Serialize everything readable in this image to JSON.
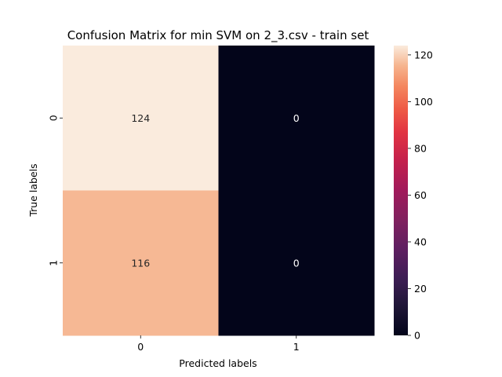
{
  "chart_data": {
    "type": "heatmap",
    "title": "Confusion Matrix for min SVM on 2_3.csv - train set",
    "xlabel": "Predicted labels",
    "ylabel": "True labels",
    "x_categories": [
      "0",
      "1"
    ],
    "y_categories": [
      "0",
      "1"
    ],
    "values": [
      [
        124,
        0
      ],
      [
        116,
        0
      ]
    ],
    "annotations": [
      [
        "124",
        "0"
      ],
      [
        "116",
        "0"
      ]
    ],
    "colorbar": {
      "min": 0,
      "max": 124,
      "ticks": [
        0,
        20,
        40,
        60,
        80,
        100,
        120
      ],
      "tick_labels": [
        "0",
        "20",
        "40",
        "60",
        "80",
        "100",
        "120"
      ],
      "colormap": "rocket"
    },
    "grid": false
  }
}
